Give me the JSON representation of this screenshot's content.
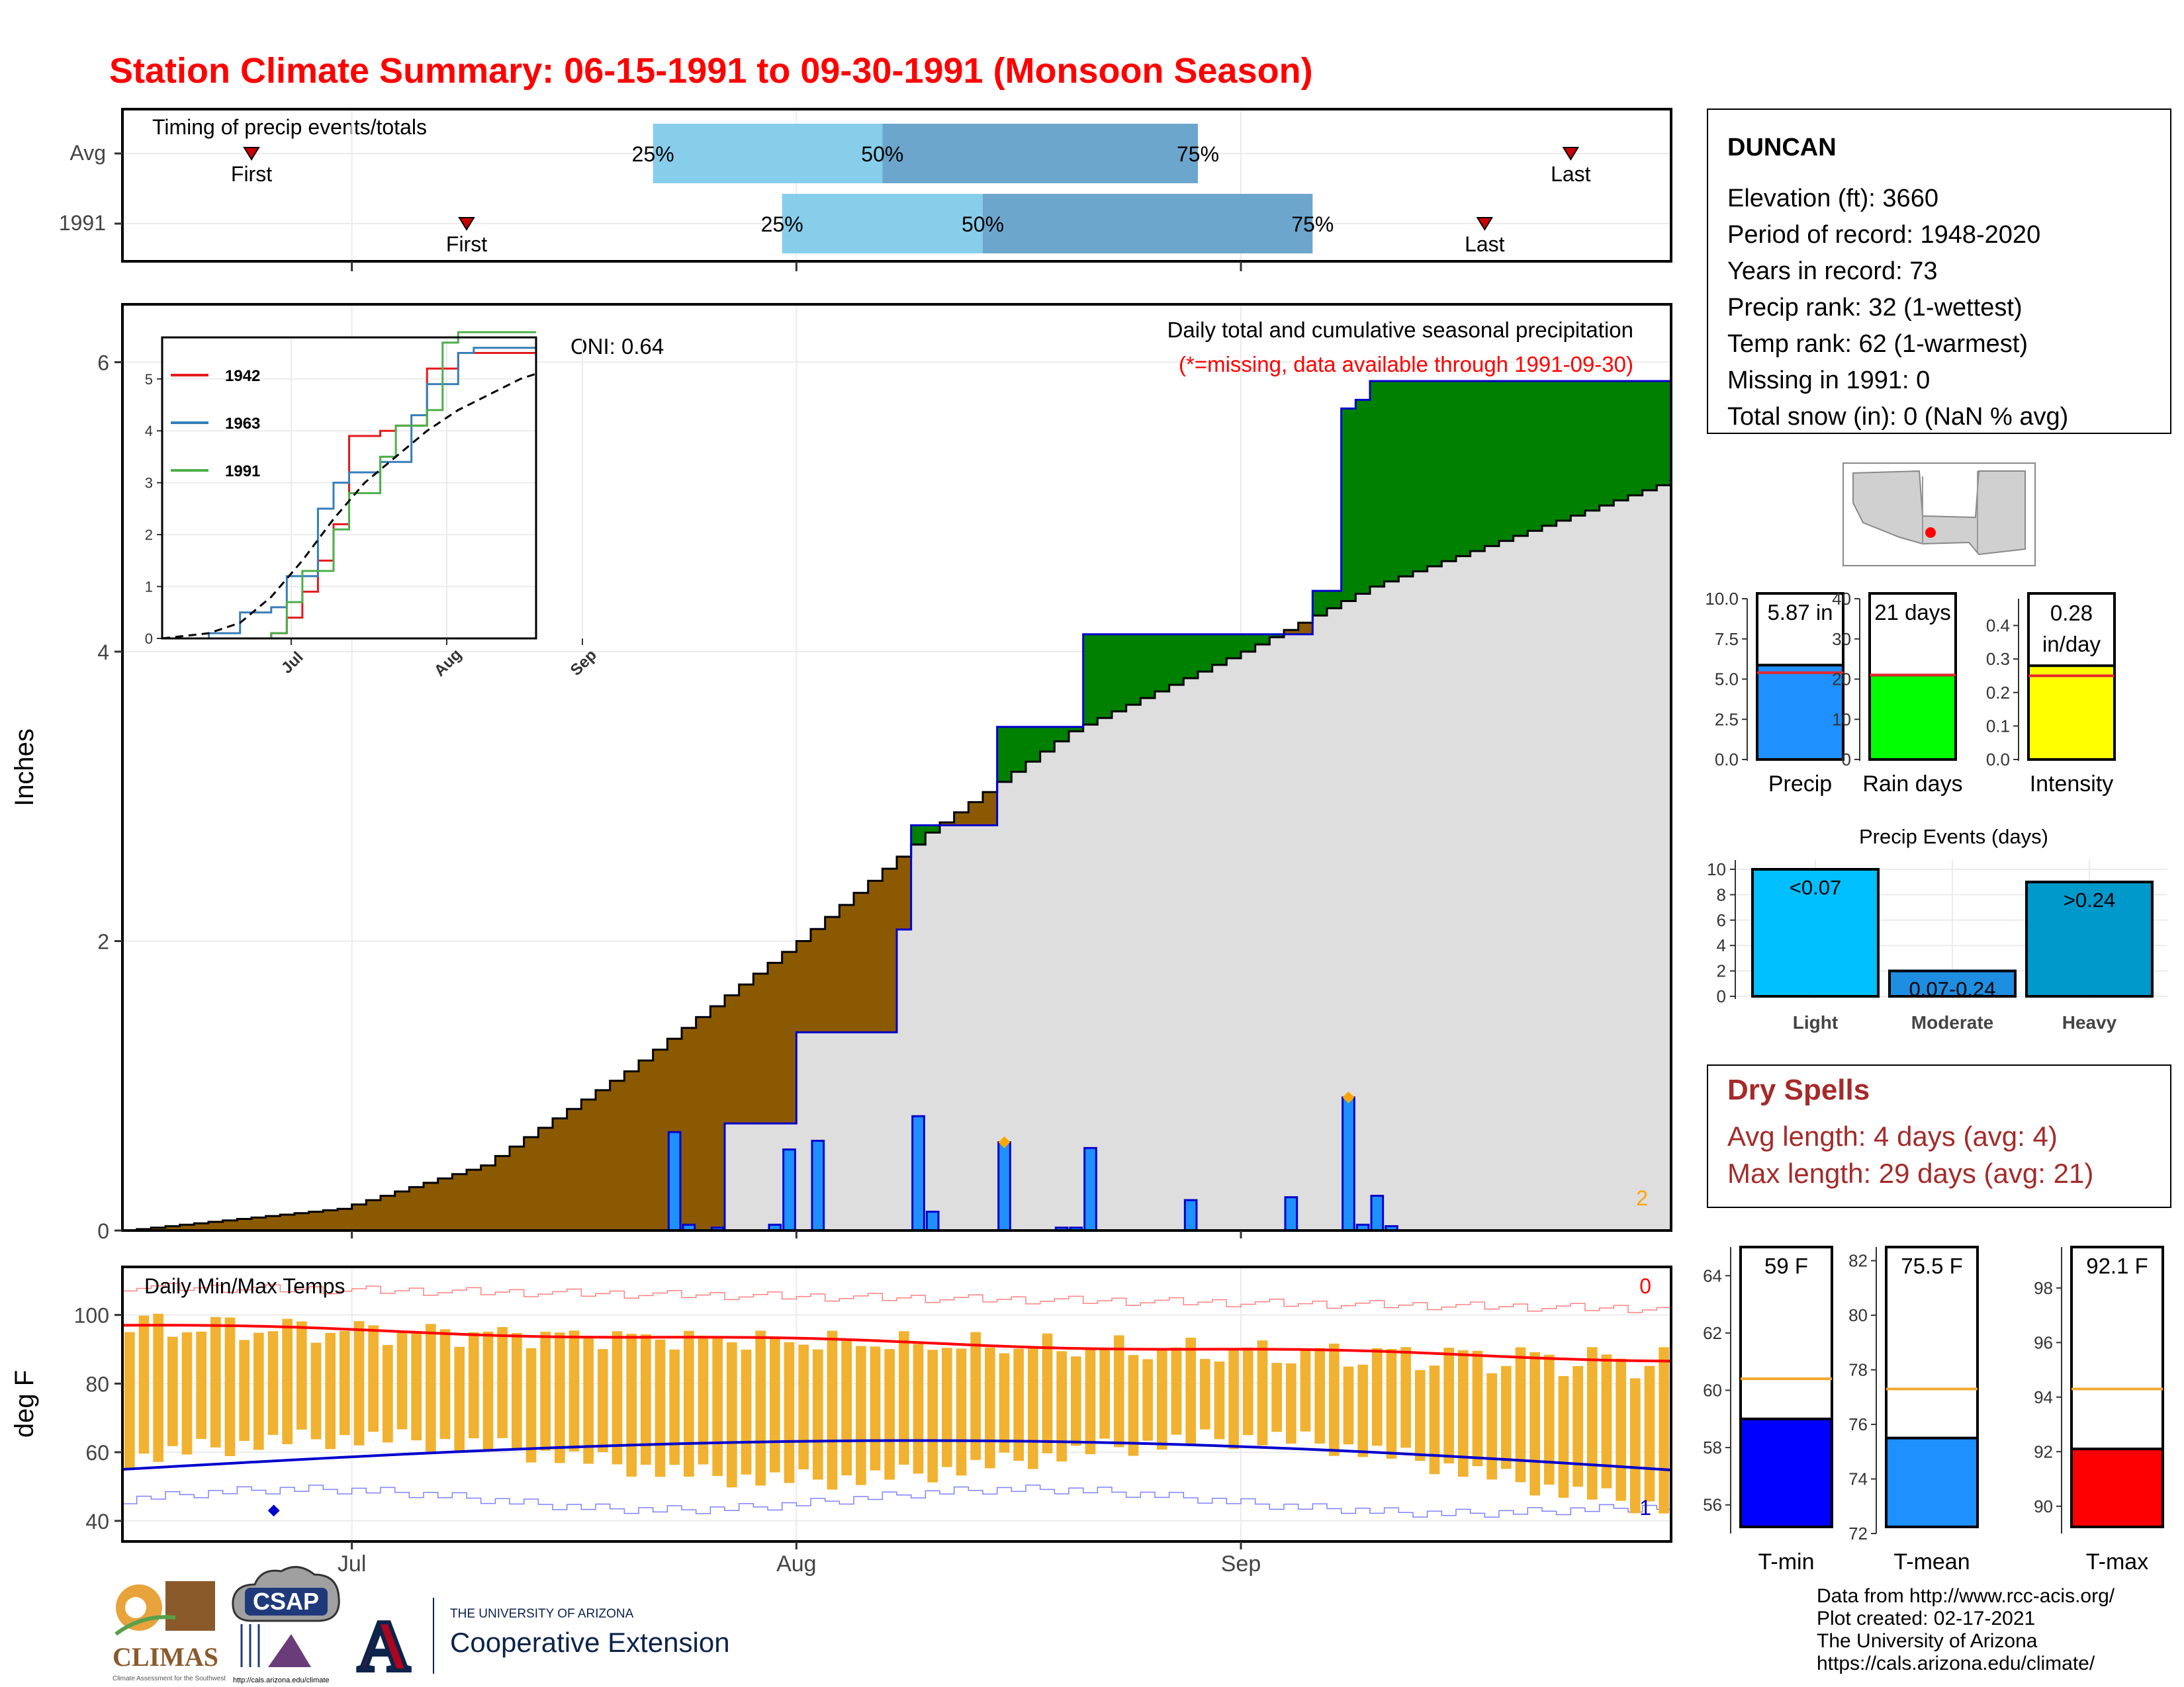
{
  "title": "Station Climate Summary: 06-15-1991 to 09-30-1991 (Monsoon Season)",
  "timing": {
    "label": "Timing of precip events/totals",
    "rows": [
      {
        "label": "Avg",
        "first_label": "First",
        "last_label": "Last",
        "p25": "25%",
        "p50": "50%",
        "p75": "75%"
      },
      {
        "label": "1991",
        "first_label": "First",
        "last_label": "Last",
        "p25": "25%",
        "p50": "50%",
        "p75": "75%"
      }
    ]
  },
  "station": {
    "name": "DUNCAN",
    "lines": [
      "Elevation (ft): 3660",
      "Period of record: 1948-2020",
      "Years in record: 73",
      "Precip rank: 32 (1-wettest)",
      "Temp rank: 62 (1-warmest)",
      "Missing in 1991: 0",
      "Total snow (in): 0 (NaN % avg)"
    ]
  },
  "main": {
    "ylabel": "Inches",
    "yticks": [
      "0",
      "2",
      "4",
      "6"
    ],
    "oni": "ONI: 0.64",
    "note1": "Daily total and cumulative seasonal precipitation",
    "note2": "(*=missing, data available through 1991-09-30)",
    "corner_count": "2"
  },
  "inset": {
    "legend": [
      "1942",
      "1963",
      "1991"
    ],
    "yticks": [
      "0",
      "1",
      "2",
      "3",
      "4",
      "5"
    ],
    "xticks": [
      "Jul",
      "Aug",
      "Sep"
    ]
  },
  "temps": {
    "label": "Daily Min/Max Temps",
    "ylabel": "deg F",
    "yticks": [
      "40",
      "60",
      "80",
      "100"
    ],
    "count_top": "0",
    "count_bottom": "1"
  },
  "xaxis": {
    "ticks": [
      "Jul",
      "Aug",
      "Sep"
    ]
  },
  "chart_data": [
    {
      "type": "area",
      "title": "Daily total and cumulative seasonal precipitation",
      "ylabel": "Inches",
      "ylim": [
        0,
        6.4
      ],
      "x_start": "1991-06-15",
      "x_end": "1991-09-30",
      "observed_cumulative_steps": [
        {
          "date": "1991-06-15",
          "value": 0.0
        },
        {
          "date": "1991-07-27",
          "value": 0.74
        },
        {
          "date": "1991-08-01",
          "value": 1.37
        },
        {
          "date": "1991-08-08",
          "value": 2.08
        },
        {
          "date": "1991-08-09",
          "value": 2.8
        },
        {
          "date": "1991-08-15",
          "value": 3.48
        },
        {
          "date": "1991-08-21",
          "value": 4.12
        },
        {
          "date": "1991-09-06",
          "value": 4.42
        },
        {
          "date": "1991-09-08",
          "value": 5.68
        },
        {
          "date": "1991-09-09",
          "value": 5.74
        },
        {
          "date": "1991-09-10",
          "value": 5.87
        }
      ],
      "average_cumulative": [
        {
          "date": "1991-06-15",
          "value": 0.0
        },
        {
          "date": "1991-06-30",
          "value": 0.15
        },
        {
          "date": "1991-07-10",
          "value": 0.45
        },
        {
          "date": "1991-07-20",
          "value": 1.1
        },
        {
          "date": "1991-08-01",
          "value": 2.0
        },
        {
          "date": "1991-08-10",
          "value": 2.75
        },
        {
          "date": "1991-08-20",
          "value": 3.45
        },
        {
          "date": "1991-09-01",
          "value": 4.0
        },
        {
          "date": "1991-09-10",
          "value": 4.45
        },
        {
          "date": "1991-09-20",
          "value": 4.8
        },
        {
          "date": "1991-09-30",
          "value": 5.15
        }
      ],
      "daily_precip": [
        {
          "date": "1991-07-23",
          "value": 0.68
        },
        {
          "date": "1991-07-24",
          "value": 0.04
        },
        {
          "date": "1991-07-26",
          "value": 0.02
        },
        {
          "date": "1991-07-30",
          "value": 0.04
        },
        {
          "date": "1991-07-31",
          "value": 0.56
        },
        {
          "date": "1991-08-02",
          "value": 0.62
        },
        {
          "date": "1991-08-09",
          "value": 0.79
        },
        {
          "date": "1991-08-10",
          "value": 0.13
        },
        {
          "date": "1991-08-15",
          "value": 0.61
        },
        {
          "date": "1991-08-19",
          "value": 0.02
        },
        {
          "date": "1991-08-21",
          "value": 0.57
        },
        {
          "date": "1991-08-20",
          "value": 0.02
        },
        {
          "date": "1991-08-28",
          "value": 0.21
        },
        {
          "date": "1991-09-04",
          "value": 0.23
        },
        {
          "date": "1991-09-08",
          "value": 0.92
        },
        {
          "date": "1991-09-09",
          "value": 0.04
        },
        {
          "date": "1991-09-10",
          "value": 0.24
        },
        {
          "date": "1991-09-11",
          "value": 0.03
        }
      ],
      "record_marks": [
        "1991-08-15",
        "1991-09-08"
      ]
    },
    {
      "type": "line",
      "title": "Timing of precip events/totals",
      "rows": [
        {
          "name": "Avg",
          "first": "1991-06-24",
          "p25": "1991-07-22",
          "p50": "1991-08-07",
          "p75": "1991-08-29",
          "last": "1991-09-24"
        },
        {
          "name": "1991",
          "first": "1991-07-09",
          "p25": "1991-07-31",
          "p50": "1991-08-14",
          "p75": "1991-09-06",
          "last": "1991-09-18"
        }
      ]
    },
    {
      "type": "line",
      "series": [
        {
          "name": "1942",
          "color": "#e41a1c",
          "points": [
            [
              0,
              0
            ],
            [
              5,
              0
            ],
            [
              7,
              0.1
            ],
            [
              8,
              0.4
            ],
            [
              9,
              0.9
            ],
            [
              10,
              1.5
            ],
            [
              11,
              2.2
            ],
            [
              12,
              3.9
            ],
            [
              14,
              4.0
            ],
            [
              15,
              4.1
            ],
            [
              17,
              5.2
            ],
            [
              19,
              5.5
            ],
            [
              20,
              5.5
            ],
            [
              23,
              5.5
            ],
            [
              24,
              5.5
            ]
          ]
        },
        {
          "name": "1963",
          "color": "#377eb8",
          "points": [
            [
              0,
              0
            ],
            [
              3,
              0.1
            ],
            [
              5,
              0.5
            ],
            [
              7,
              0.6
            ],
            [
              8,
              1.2
            ],
            [
              10,
              2.5
            ],
            [
              11,
              3.0
            ],
            [
              12,
              3.2
            ],
            [
              14,
              3.4
            ],
            [
              16,
              4.3
            ],
            [
              17,
              4.9
            ],
            [
              19,
              5.5
            ],
            [
              20,
              5.6
            ],
            [
              22,
              5.6
            ],
            [
              24,
              5.6
            ]
          ]
        },
        {
          "name": "1991",
          "color": "#4daf4a",
          "points": [
            [
              0,
              0
            ],
            [
              7,
              0.1
            ],
            [
              8,
              0.7
            ],
            [
              9,
              1.3
            ],
            [
              11,
              2.1
            ],
            [
              12,
              2.8
            ],
            [
              14,
              3.5
            ],
            [
              15,
              4.1
            ],
            [
              17,
              4.4
            ],
            [
              18,
              5.7
            ],
            [
              19,
              5.9
            ],
            [
              24,
              5.9
            ]
          ]
        },
        {
          "name": "avg",
          "color": "#000000",
          "dashed": true,
          "points": [
            [
              0,
              0
            ],
            [
              3,
              0.1
            ],
            [
              5,
              0.3
            ],
            [
              7,
              0.8
            ],
            [
              9,
              1.5
            ],
            [
              11,
              2.3
            ],
            [
              13,
              3.0
            ],
            [
              15,
              3.5
            ],
            [
              17,
              4.0
            ],
            [
              19,
              4.4
            ],
            [
              21,
              4.7
            ],
            [
              23,
              5.0
            ],
            [
              24,
              5.1
            ]
          ]
        }
      ],
      "xticks": [
        "Jul",
        "Aug",
        "Sep"
      ],
      "ylim": [
        0,
        5.8
      ]
    },
    {
      "type": "bar",
      "title": "Summary bars",
      "panels": [
        {
          "name": "Precip",
          "value": 5.87,
          "avg": 5.4,
          "label": "5.87 in",
          "ylim": [
            0,
            10
          ],
          "ticks": [
            "0.0",
            "2.5",
            "5.0",
            "7.5",
            "10.0"
          ],
          "color": "#1e90ff"
        },
        {
          "name": "Rain days",
          "value": 21,
          "avg": 21,
          "label": "21 days",
          "ylim": [
            0,
            40
          ],
          "ticks": [
            "0",
            "10",
            "20",
            "30",
            "40"
          ],
          "color": "#00ff00"
        },
        {
          "name": "Intensity",
          "value": 0.28,
          "avg": 0.25,
          "label": "0.28 in/day",
          "label_lines": [
            "0.28",
            "in/day"
          ],
          "ylim": [
            0,
            0.48
          ],
          "ticks": [
            "0.0",
            "0.1",
            "0.2",
            "0.3",
            "0.4"
          ],
          "color": "#ffff00"
        }
      ]
    },
    {
      "type": "bar",
      "title": "Precip Events (days)",
      "categories": [
        "Light",
        "Moderate",
        "Heavy"
      ],
      "values": [
        10,
        2,
        9
      ],
      "bar_labels": [
        "<0.07",
        "0.07-0.24",
        ">0.24"
      ],
      "ylim": [
        0,
        10
      ],
      "ticks": [
        "0",
        "2",
        "4",
        "6",
        "8",
        "10"
      ]
    },
    {
      "type": "bar",
      "title": "Temperature summary",
      "panels": [
        {
          "name": "T-min",
          "value": 59,
          "avg": 60.4,
          "label": "59 F",
          "ylim": [
            55,
            65
          ],
          "ticks": [
            "56",
            "58",
            "60",
            "62",
            "64"
          ],
          "color": "#0000ff"
        },
        {
          "name": "T-mean",
          "value": 75.5,
          "avg": 77.3,
          "label": "75.5 F",
          "ylim": [
            72,
            82.5
          ],
          "ticks": [
            "72",
            "74",
            "76",
            "78",
            "80",
            "82"
          ],
          "color": "#1e90ff"
        },
        {
          "name": "T-max",
          "value": 92.1,
          "avg": 94.3,
          "label": "92.1 F",
          "ylim": [
            89,
            99.5
          ],
          "ticks": [
            "90",
            "92",
            "94",
            "96",
            "98"
          ],
          "color": "#ff0000"
        }
      ]
    },
    {
      "type": "line",
      "title": "Daily Min/Max Temps",
      "ylabel": "deg F",
      "ylim": [
        34,
        114
      ],
      "avg_max": {
        "start": 97,
        "end": 87
      },
      "avg_min": {
        "start": 55,
        "end": 48
      },
      "note": "Daily bars span observed min to max temperature, Jun 15 - Sep 30"
    }
  ],
  "dry_spells": {
    "title": "Dry Spells",
    "avg": "Avg length: 4 days (avg: 4)",
    "max": "Max length: 29 days (avg: 21)"
  },
  "events": {
    "title": "Precip Events (days)"
  },
  "footer": {
    "lines": [
      "Data from http://www.rcc-acis.org/",
      "Plot created: 02-17-2021",
      "The University of Arizona",
      "https://cals.arizona.edu/climate/"
    ],
    "logo_climas": "CLIMAS",
    "logo_climas_sub": "Climate Assessment for the Southwest",
    "logo_csap": "CSAP",
    "logo_csap_url": "http://cals.arizona.edu/climate",
    "ua_small": "THE UNIVERSITY OF ARIZONA",
    "ua_big": "Cooperative Extension",
    "ua_letter": "A"
  },
  "colors": {
    "title": "#ff0000",
    "above_avg": "#008000",
    "below_avg": "#8b5a00",
    "obs_line": "#0000cd",
    "bars": "#1e90ff",
    "grey_fill": "#dedede",
    "dry_text": "#a52a2a"
  }
}
